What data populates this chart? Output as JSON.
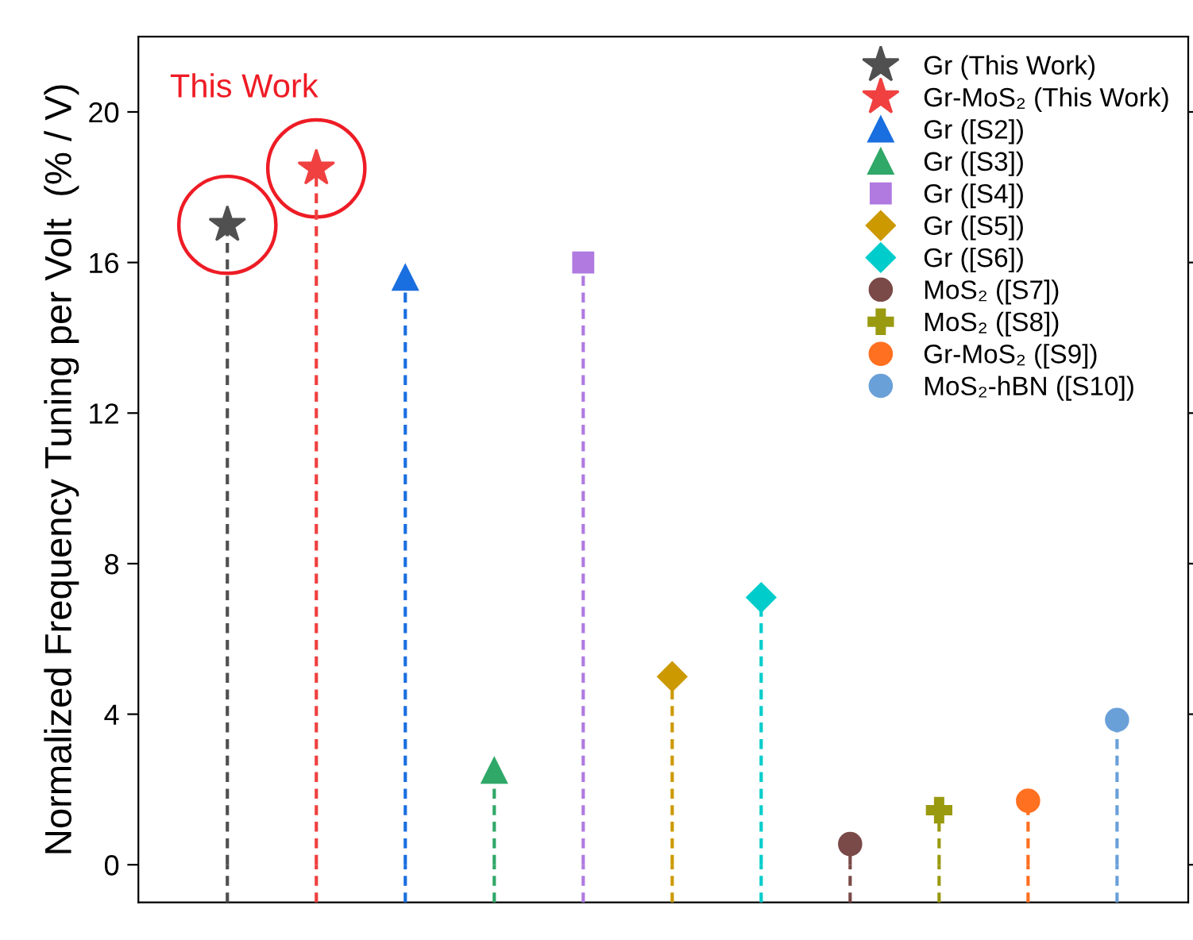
{
  "chart_data": {
    "type": "lollipop",
    "ylabel": "Normalized Frequency Tuning per Volt  (% / V)",
    "categories": [
      null,
      null,
      null,
      null,
      null,
      null,
      null,
      null,
      null,
      null,
      null
    ],
    "ylim": [
      -1,
      22
    ],
    "yticks": [
      0,
      4,
      8,
      12,
      16,
      20
    ],
    "grid": false,
    "legend": "top right",
    "line_style": "dashed",
    "tick_labels": "y",
    "annotations": [
      "This Work"
    ],
    "series": [
      {
        "name": "Gr (This Work)",
        "color": "#505050",
        "marker": "star",
        "values": [
          17,
          null,
          null,
          null,
          null,
          null,
          null,
          null,
          null,
          null,
          null
        ]
      },
      {
        "name": "Gr-MoS₂ (This Work)",
        "color": "#f04040",
        "marker": "star",
        "values": [
          null,
          18.5,
          null,
          null,
          null,
          null,
          null,
          null,
          null,
          null,
          null
        ]
      },
      {
        "name": "Gr ([S2])",
        "color": "#1a6fe0",
        "marker": "triangle",
        "values": [
          null,
          null,
          15.6,
          null,
          null,
          null,
          null,
          null,
          null,
          null,
          null
        ]
      },
      {
        "name": "Gr ([S3])",
        "color": "#30a868",
        "marker": "triangle",
        "values": [
          null,
          null,
          null,
          2.5,
          null,
          null,
          null,
          null,
          null,
          null,
          null
        ]
      },
      {
        "name": "Gr ([S4])",
        "color": "#b07ae0",
        "marker": "square",
        "values": [
          null,
          null,
          null,
          null,
          16,
          null,
          null,
          null,
          null,
          null,
          null
        ]
      },
      {
        "name": "Gr ([S5])",
        "color": "#cc9900",
        "marker": "diamond",
        "values": [
          null,
          null,
          null,
          null,
          null,
          5,
          null,
          null,
          null,
          null,
          null
        ]
      },
      {
        "name": "Gr ([S6])",
        "color": "#00cccc",
        "marker": "diamond",
        "values": [
          null,
          null,
          null,
          null,
          null,
          null,
          7.1,
          null,
          null,
          null,
          null
        ]
      },
      {
        "name": "MoS₂ ([S7])",
        "color": "#7a4a48",
        "marker": "circle",
        "values": [
          null,
          null,
          null,
          null,
          null,
          null,
          null,
          0.55,
          null,
          null,
          null
        ]
      },
      {
        "name": "MoS₂ ([S8])",
        "color": "#9a9a10",
        "marker": "cross",
        "values": [
          null,
          null,
          null,
          null,
          null,
          null,
          null,
          null,
          1.45,
          null,
          null
        ]
      },
      {
        "name": "Gr-MoS₂ ([S9])",
        "color": "#ff7020",
        "marker": "circle",
        "values": [
          null,
          null,
          null,
          null,
          null,
          null,
          null,
          null,
          null,
          1.7,
          null
        ]
      },
      {
        "name": "MoS₂-hBN ([S10])",
        "color": "#6aa0d8",
        "marker": "circle",
        "values": [
          null,
          null,
          null,
          null,
          null,
          null,
          null,
          null,
          null,
          null,
          3.85
        ]
      }
    ]
  }
}
